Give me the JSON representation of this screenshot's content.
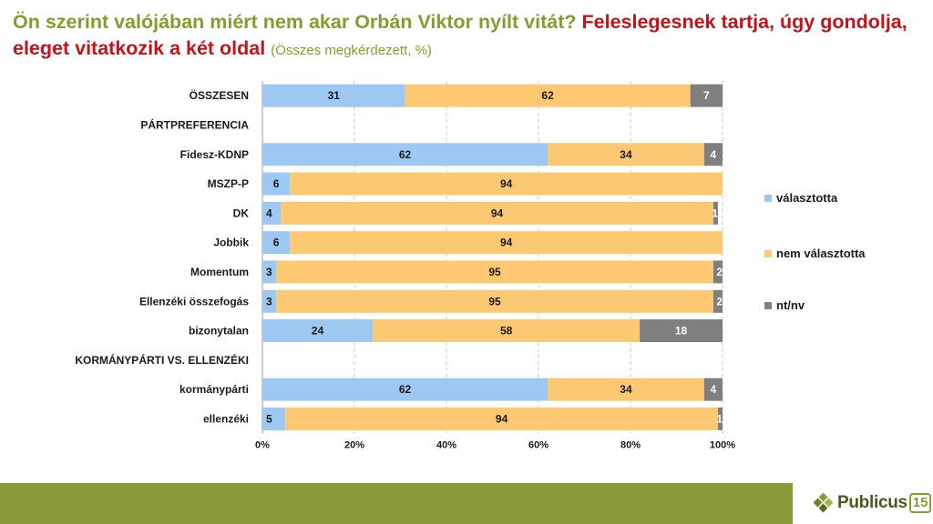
{
  "title": {
    "part1": "Ön szerint valójában miért nem akar Orbán Viktor nyílt vitát?",
    "part2": "Feleslegesnek tartja, úgy gondolja, eleget vitatkozik a két oldal",
    "note": "(Összes megkérdezett, %)"
  },
  "chart_data": {
    "type": "bar",
    "orientation": "horizontal",
    "stacked": true,
    "categories": [
      "ÖSSZESEN",
      "PÁRTPREFERENCIA",
      "Fidesz-KDNP",
      "MSZP-P",
      "DK",
      "Jobbik",
      "Momentum",
      "Ellenzéki összefogás",
      "bizonytalan",
      "KORMÁNYPÁRTI VS. ELLENZÉKI",
      "kormánypárti",
      "ellenzéki"
    ],
    "series": [
      {
        "name": "választotta",
        "color": "#9dc8f2",
        "values": [
          31,
          null,
          62,
          6,
          4,
          6,
          3,
          3,
          24,
          null,
          62,
          5
        ]
      },
      {
        "name": "nem választotta",
        "color": "#fcc872",
        "values": [
          62,
          null,
          34,
          94,
          94,
          94,
          95,
          95,
          58,
          null,
          34,
          94
        ]
      },
      {
        "name": "nt/nv",
        "color": "#7f7f7f",
        "values": [
          7,
          null,
          4,
          null,
          1,
          null,
          2,
          2,
          18,
          null,
          4,
          1
        ]
      }
    ],
    "xlim": [
      0,
      100
    ],
    "xticks": [
      "0%",
      "20%",
      "40%",
      "60%",
      "80%",
      "100%"
    ],
    "grid": true,
    "legend": "right"
  },
  "logo": {
    "text": "Publicus",
    "num": "15"
  }
}
